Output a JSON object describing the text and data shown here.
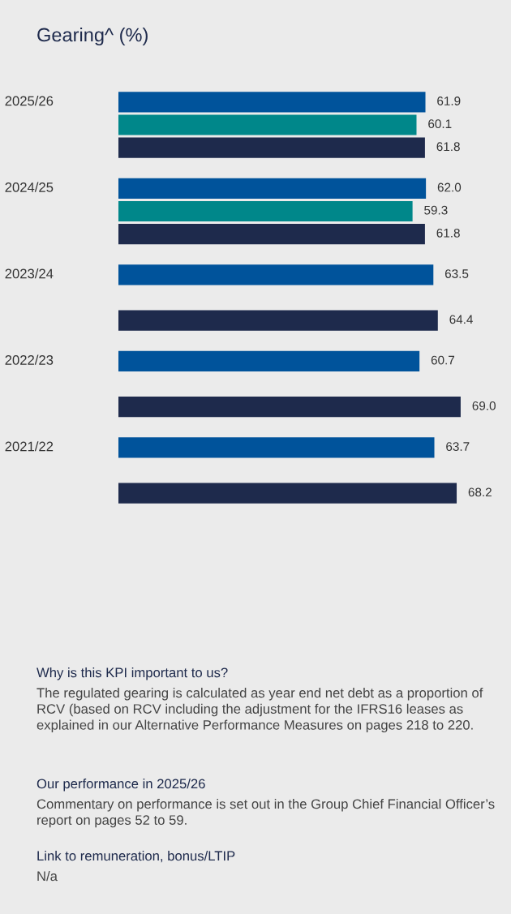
{
  "chart_data": {
    "type": "bar",
    "orientation": "horizontal",
    "title": "Gearing^ (%)",
    "categories": [
      "2025/26",
      "2024/25",
      "2023/24",
      "2022/23",
      "2021/22"
    ],
    "series": [
      {
        "color": "#00539b",
        "values": [
          61.9,
          62.0,
          63.5,
          60.7,
          63.7
        ],
        "value_labels": [
          "61.9",
          "62.0",
          "63.5",
          "60.7",
          "63.7"
        ]
      },
      {
        "color": "#00878a",
        "values": [
          60.1,
          59.3,
          null,
          null,
          null
        ],
        "value_labels": [
          "60.1",
          "59.3",
          null,
          null,
          null
        ]
      },
      {
        "color": "#1e2a4c",
        "values": [
          61.8,
          61.8,
          64.4,
          69.0,
          68.2
        ],
        "value_labels": [
          "61.8",
          "61.8",
          "64.4",
          "69.0",
          "68.2"
        ]
      }
    ],
    "legend": false,
    "annotations": [
      "Why is this KPI important to us?",
      "The regulated gearing is calculated as year end net debt as a proportion of RCV (based on RCV including the adjustment for the IFRS16 leases as explained in our Alternative Performance Measures on pages 218 to 220.",
      "Our performance in 2025/26",
      "Commentary on performance is set out in the Group Chief Financial Officer’s report on pages 52 to 59.",
      "Link to remuneration, bonus/LTIP",
      "N/a"
    ]
  }
}
